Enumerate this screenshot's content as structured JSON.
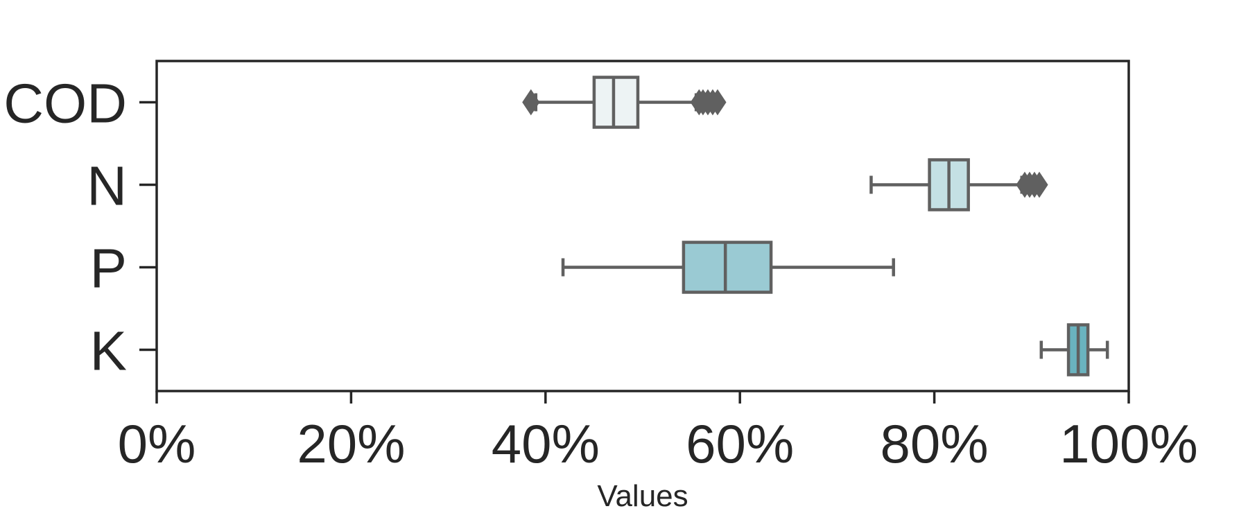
{
  "chart_data": {
    "type": "boxplot",
    "orientation": "horizontal",
    "title": "",
    "xlabel": "Values",
    "ylabel": "",
    "xlim": [
      0,
      100
    ],
    "xticks": [
      0,
      20,
      40,
      60,
      80,
      100
    ],
    "xtick_labels": [
      "0%",
      "20%",
      "40%",
      "60%",
      "80%",
      "100%"
    ],
    "grid": false,
    "legend": "none",
    "categories": [
      "COD",
      "N",
      "P",
      "K"
    ],
    "series": [
      {
        "category": "COD",
        "whisker_low": 39,
        "q1": 45,
        "median": 47,
        "q3": 49.5,
        "whisker_high": 55.5,
        "outliers": [
          38.5,
          55.8,
          56.2,
          56.7,
          57.2,
          57.7
        ],
        "color": "#edf3f4"
      },
      {
        "category": "N",
        "whisker_low": 73.5,
        "q1": 79.5,
        "median": 81.5,
        "q3": 83.5,
        "whisker_high": 89,
        "outliers": [
          89.3,
          89.8,
          90.3,
          90.8
        ],
        "color": "#c4e0e4"
      },
      {
        "category": "P",
        "whisker_low": 41.8,
        "q1": 54.2,
        "median": 58.5,
        "q3": 63.2,
        "whisker_high": 75.8,
        "outliers": [],
        "color": "#9acad3"
      },
      {
        "category": "K",
        "whisker_low": 91,
        "q1": 93.8,
        "median": 94.8,
        "q3": 95.8,
        "whisker_high": 97.8,
        "outliers": [],
        "color": "#6ab3bf"
      }
    ]
  }
}
